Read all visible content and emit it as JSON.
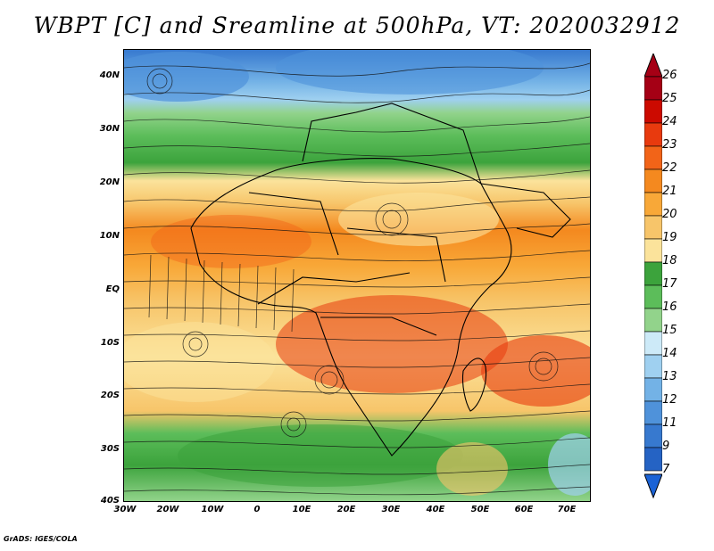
{
  "title": "WBPT [C] and Sreamline at 500hPa, VT: 2020032912",
  "credit": "GrADS: IGES/COLA",
  "map": {
    "lat_labels": [
      "40N",
      "30N",
      "20N",
      "10N",
      "EQ",
      "10S",
      "20S",
      "30S",
      "40S"
    ],
    "lon_labels": [
      "30W",
      "20W",
      "10W",
      "0",
      "10E",
      "20E",
      "30E",
      "40E",
      "50E",
      "60E",
      "70E"
    ],
    "lat_range": [
      -40,
      45
    ],
    "lon_range": [
      -30,
      75
    ]
  },
  "colorbar": {
    "labels": [
      "26",
      "25",
      "24",
      "23",
      "22",
      "21",
      "20",
      "19",
      "18",
      "17",
      "16",
      "15",
      "14",
      "13",
      "12",
      "11",
      "9",
      "7"
    ],
    "colors": [
      "#a50015",
      "#cc0a00",
      "#e83a0e",
      "#f26418",
      "#f4891f",
      "#f8a838",
      "#f7c56a",
      "#fbe39b",
      "#3ca33c",
      "#5cbd5a",
      "#92d38b",
      "#cdeaf8",
      "#9fd0f0",
      "#73b2e6",
      "#4f92da",
      "#3779cf",
      "#2563c4"
    ],
    "end_colors": {
      "top": "#a50015",
      "bottom": "#1b63d6"
    }
  }
}
